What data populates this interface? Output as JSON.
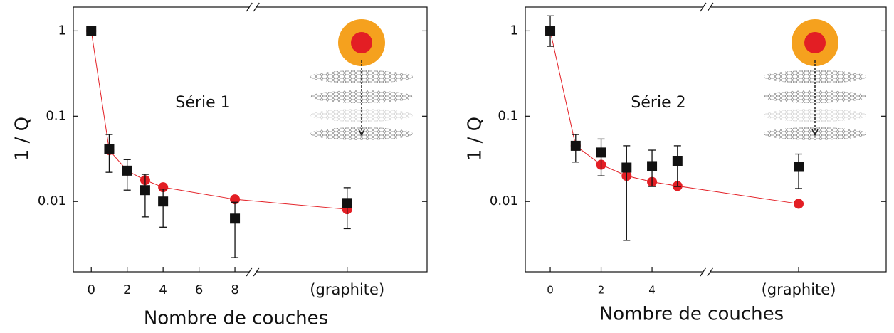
{
  "chart_data": [
    {
      "type": "line",
      "annotation": "Série 1",
      "xlabel": "Nombre de couches",
      "ylabel": "1 / Q",
      "x": [
        0,
        1,
        2,
        3,
        4,
        8,
        14.25
      ],
      "xlim": [
        -1,
        18.7
      ],
      "axis_break": 9,
      "xticks": [
        0,
        2,
        4,
        6,
        8,
        {
          "value": 14.25,
          "label": "(graphite)"
        }
      ],
      "ylim": [
        0.0015,
        1.9
      ],
      "yticks": [
        0.01,
        0.1,
        1
      ],
      "log_y": true,
      "series": [
        {
          "color": "#e31e24",
          "marker": "circle",
          "line": true,
          "values": [
            1.0,
            0.04,
            0.023,
            0.0178,
            0.0147,
            0.0106,
            0.0081
          ]
        },
        {
          "color": "#111111",
          "marker": "square",
          "values": [
            1.0,
            0.041,
            0.023,
            0.0136,
            0.01,
            0.0063,
            0.0096
          ],
          "lower": [
            0.93,
            0.022,
            0.0136,
            0.0066,
            0.005,
            0.0022,
            0.0048
          ],
          "upper": [
            1.05,
            0.061,
            0.031,
            0.0208,
            0.014,
            0.0098,
            0.0145
          ]
        }
      ]
    },
    {
      "type": "line",
      "annotation": "Série 2",
      "xlabel": "Nombre de couches",
      "ylabel": "1 / Q",
      "x": [
        0,
        1,
        2,
        3,
        4,
        5,
        9.76
      ],
      "xlim": [
        -0.98,
        13.2
      ],
      "axis_break": 6.15,
      "xticks": [
        0,
        2,
        4,
        {
          "value": 9.76,
          "label": "(graphite)"
        }
      ],
      "ylim": [
        0.0015,
        1.9
      ],
      "yticks": [
        0.01,
        0.1,
        1
      ],
      "log_y": true,
      "series": [
        {
          "color": "#e31e24",
          "marker": "circle",
          "line": true,
          "values": [
            1.0,
            0.045,
            0.027,
            0.02,
            0.017,
            0.0152,
            0.0094
          ]
        },
        {
          "color": "#111111",
          "marker": "square",
          "values": [
            1.0,
            0.045,
            0.0375,
            0.025,
            0.026,
            0.03,
            0.0255
          ],
          "lower": [
            0.66,
            0.029,
            0.02,
            0.0035,
            0.015,
            0.015,
            0.0142
          ],
          "upper": [
            1.5,
            0.061,
            0.054,
            0.045,
            0.04,
            0.045,
            0.036
          ]
        }
      ]
    }
  ]
}
